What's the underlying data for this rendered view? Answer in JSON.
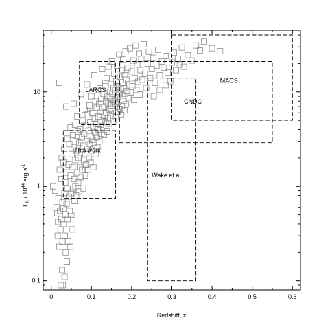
{
  "chart_data": {
    "type": "scatter",
    "xlabel": "Redshift, z",
    "ylabel_main": "L",
    "ylabel_sub": "X",
    "ylabel_mid": " / 10",
    "ylabel_exp": "44",
    "ylabel_unit": " erg s",
    "ylabel_unit_exp": "-1",
    "xlim": [
      -0.02,
      0.62
    ],
    "ylim": [
      0.08,
      45
    ],
    "yscale": "log",
    "grid": false,
    "x_ticks": [
      {
        "value": 0,
        "label": "0"
      },
      {
        "value": 0.1,
        "label": "0.1"
      },
      {
        "value": 0.2,
        "label": "0.2"
      },
      {
        "value": 0.3,
        "label": "0.3"
      },
      {
        "value": 0.4,
        "label": "0.4"
      },
      {
        "value": 0.5,
        "label": "0.5"
      },
      {
        "value": 0.6,
        "label": "0.6"
      }
    ],
    "y_ticks": [
      {
        "value": 0.1,
        "label": "0.1"
      },
      {
        "value": 1,
        "label": "1"
      },
      {
        "value": 10,
        "label": "10"
      }
    ],
    "colors": {
      "marker": "#8c8c8c",
      "axis": "#000000",
      "box": "#000000"
    },
    "regions": [
      {
        "name": "LARCS",
        "label_x": 0.085,
        "label_y": 10.0,
        "x": [
          0.07,
          0.16
        ],
        "y": [
          4.5,
          21
        ]
      },
      {
        "name": "This work",
        "label_x": 0.057,
        "label_y": 2.3,
        "x": [
          0.03,
          0.16
        ],
        "y": [
          0.75,
          3.9
        ]
      },
      {
        "name": "Wake et al.",
        "label_x": 0.25,
        "label_y": 1.25,
        "x": [
          0.24,
          0.36
        ],
        "y": [
          0.1,
          14
        ]
      },
      {
        "name": "CNDC",
        "label_x": 0.33,
        "label_y": 7.5,
        "x": [
          0.17,
          0.55
        ],
        "y": [
          2.9,
          21
        ]
      },
      {
        "name": "MACS",
        "label_x": 0.42,
        "label_y": 12.5,
        "x": [
          0.3,
          0.6
        ],
        "y": [
          5.0,
          40
        ]
      }
    ],
    "points": [
      [
        0.005,
        1.0
      ],
      [
        0.01,
        0.9
      ],
      [
        0.013,
        0.6
      ],
      [
        0.015,
        0.52
      ],
      [
        0.016,
        0.3
      ],
      [
        0.017,
        0.42
      ],
      [
        0.018,
        0.75
      ],
      [
        0.02,
        12.5
      ],
      [
        0.02,
        0.23
      ],
      [
        0.021,
        1.5
      ],
      [
        0.022,
        0.55
      ],
      [
        0.023,
        0.35
      ],
      [
        0.024,
        0.09
      ],
      [
        0.025,
        1.2
      ],
      [
        0.025,
        0.45
      ],
      [
        0.026,
        2.0
      ],
      [
        0.027,
        0.13
      ],
      [
        0.028,
        0.68
      ],
      [
        0.028,
        0.26
      ],
      [
        0.029,
        0.09
      ],
      [
        0.03,
        1.8
      ],
      [
        0.03,
        0.58
      ],
      [
        0.031,
        0.4
      ],
      [
        0.032,
        2.5
      ],
      [
        0.033,
        0.11
      ],
      [
        0.033,
        0.85
      ],
      [
        0.034,
        0.3
      ],
      [
        0.035,
        1.1
      ],
      [
        0.035,
        0.5
      ],
      [
        0.036,
        0.2
      ],
      [
        0.037,
        7.0
      ],
      [
        0.037,
        1.4
      ],
      [
        0.038,
        0.65
      ],
      [
        0.039,
        0.16
      ],
      [
        0.04,
        3.2
      ],
      [
        0.04,
        0.95
      ],
      [
        0.041,
        0.45
      ],
      [
        0.042,
        0.26
      ],
      [
        0.043,
        1.7
      ],
      [
        0.044,
        0.78
      ],
      [
        0.045,
        2.8
      ],
      [
        0.046,
        0.55
      ],
      [
        0.047,
        0.23
      ],
      [
        0.048,
        4.2
      ],
      [
        0.048,
        1.3
      ],
      [
        0.05,
        0.85
      ],
      [
        0.05,
        0.5
      ],
      [
        0.051,
        2.2
      ],
      [
        0.052,
        0.35
      ],
      [
        0.053,
        1.6
      ],
      [
        0.054,
        3.5
      ],
      [
        0.055,
        0.95
      ],
      [
        0.056,
        7.5
      ],
      [
        0.056,
        2.6
      ],
      [
        0.057,
        1.2
      ],
      [
        0.058,
        0.7
      ],
      [
        0.059,
        4.5
      ],
      [
        0.06,
        1.9
      ],
      [
        0.06,
        1.0
      ],
      [
        0.061,
        3.0
      ],
      [
        0.062,
        0.8
      ],
      [
        0.063,
        2.4
      ],
      [
        0.064,
        1.4
      ],
      [
        0.065,
        5.5
      ],
      [
        0.066,
        3.8
      ],
      [
        0.067,
        1.1
      ],
      [
        0.068,
        2.0
      ],
      [
        0.069,
        0.88
      ],
      [
        0.07,
        2.9
      ],
      [
        0.071,
        1.6
      ],
      [
        0.072,
        4.0
      ],
      [
        0.073,
        1.25
      ],
      [
        0.074,
        9.5
      ],
      [
        0.075,
        2.3
      ],
      [
        0.076,
        3.3
      ],
      [
        0.077,
        1.5
      ],
      [
        0.078,
        5.0
      ],
      [
        0.079,
        0.95
      ],
      [
        0.08,
        2.7
      ],
      [
        0.081,
        1.9
      ],
      [
        0.082,
        3.6
      ],
      [
        0.083,
        6.5
      ],
      [
        0.084,
        1.3
      ],
      [
        0.085,
        2.2
      ],
      [
        0.086,
        4.4
      ],
      [
        0.087,
        1.7
      ],
      [
        0.088,
        3.0
      ],
      [
        0.089,
        12.0
      ],
      [
        0.09,
        2.5
      ],
      [
        0.091,
        5.8
      ],
      [
        0.092,
        1.5
      ],
      [
        0.093,
        3.9
      ],
      [
        0.094,
        2.0
      ],
      [
        0.095,
        7.2
      ],
      [
        0.096,
        2.8
      ],
      [
        0.097,
        4.8
      ],
      [
        0.098,
        1.8
      ],
      [
        0.099,
        3.4
      ],
      [
        0.1,
        9.0
      ],
      [
        0.101,
        2.4
      ],
      [
        0.102,
        6.0
      ],
      [
        0.103,
        3.1
      ],
      [
        0.104,
        4.3
      ],
      [
        0.105,
        1.6
      ],
      [
        0.106,
        2.9
      ],
      [
        0.107,
        15.0
      ],
      [
        0.108,
        5.2
      ],
      [
        0.109,
        3.7
      ],
      [
        0.11,
        8.0
      ],
      [
        0.111,
        2.2
      ],
      [
        0.112,
        4.6
      ],
      [
        0.113,
        6.8
      ],
      [
        0.114,
        3.3
      ],
      [
        0.115,
        2.6
      ],
      [
        0.116,
        10.5
      ],
      [
        0.117,
        5.5
      ],
      [
        0.118,
        4.0
      ],
      [
        0.119,
        7.5
      ],
      [
        0.12,
        3.0
      ],
      [
        0.121,
        12.5
      ],
      [
        0.122,
        6.2
      ],
      [
        0.123,
        4.5
      ],
      [
        0.124,
        3.6
      ],
      [
        0.125,
        8.5
      ],
      [
        0.126,
        5.0
      ],
      [
        0.127,
        17.5
      ],
      [
        0.128,
        6.8
      ],
      [
        0.129,
        4.2
      ],
      [
        0.13,
        9.5
      ],
      [
        0.131,
        3.5
      ],
      [
        0.132,
        7.0
      ],
      [
        0.133,
        5.6
      ],
      [
        0.134,
        11.5
      ],
      [
        0.135,
        4.8
      ],
      [
        0.136,
        8.0
      ],
      [
        0.137,
        6.0
      ],
      [
        0.138,
        14.0
      ],
      [
        0.139,
        3.8
      ],
      [
        0.14,
        9.0
      ],
      [
        0.141,
        5.3
      ],
      [
        0.142,
        7.6
      ],
      [
        0.143,
        18.5
      ],
      [
        0.144,
        4.6
      ],
      [
        0.145,
        6.5
      ],
      [
        0.146,
        10.0
      ],
      [
        0.147,
        8.5
      ],
      [
        0.148,
        5.8
      ],
      [
        0.149,
        12.0
      ],
      [
        0.15,
        7.2
      ],
      [
        0.151,
        21.0
      ],
      [
        0.152,
        9.5
      ],
      [
        0.153,
        6.3
      ],
      [
        0.154,
        4.9
      ],
      [
        0.155,
        11.0
      ],
      [
        0.156,
        8.0
      ],
      [
        0.157,
        15.5
      ],
      [
        0.158,
        6.8
      ],
      [
        0.159,
        10.5
      ],
      [
        0.16,
        7.5
      ],
      [
        0.161,
        5.4
      ],
      [
        0.162,
        13.0
      ],
      [
        0.163,
        8.8
      ],
      [
        0.164,
        19.0
      ],
      [
        0.165,
        6.1
      ],
      [
        0.166,
        11.5
      ],
      [
        0.167,
        7.8
      ],
      [
        0.168,
        9.8
      ],
      [
        0.169,
        25.0
      ],
      [
        0.17,
        6.6
      ],
      [
        0.171,
        14.5
      ],
      [
        0.172,
        8.3
      ],
      [
        0.173,
        10.8
      ],
      [
        0.174,
        5.7
      ],
      [
        0.175,
        17.0
      ],
      [
        0.176,
        7.1
      ],
      [
        0.177,
        12.5
      ],
      [
        0.178,
        9.2
      ],
      [
        0.179,
        22.0
      ],
      [
        0.18,
        8.0
      ],
      [
        0.181,
        11.0
      ],
      [
        0.182,
        6.4
      ],
      [
        0.183,
        15.0
      ],
      [
        0.184,
        9.6
      ],
      [
        0.185,
        27.0
      ],
      [
        0.186,
        7.4
      ],
      [
        0.187,
        13.5
      ],
      [
        0.188,
        10.2
      ],
      [
        0.19,
        18.0
      ],
      [
        0.192,
        8.7
      ],
      [
        0.194,
        12.0
      ],
      [
        0.196,
        29.0
      ],
      [
        0.198,
        9.9
      ],
      [
        0.2,
        16.5
      ],
      [
        0.202,
        11.5
      ],
      [
        0.204,
        21.5
      ],
      [
        0.206,
        8.2
      ],
      [
        0.208,
        14.0
      ],
      [
        0.21,
        31.0
      ],
      [
        0.212,
        10.5
      ],
      [
        0.214,
        19.5
      ],
      [
        0.216,
        12.8
      ],
      [
        0.218,
        25.5
      ],
      [
        0.22,
        9.4
      ],
      [
        0.222,
        17.0
      ],
      [
        0.224,
        22.5
      ],
      [
        0.226,
        13.5
      ],
      [
        0.23,
        32.0
      ],
      [
        0.233,
        15.5
      ],
      [
        0.236,
        11.0
      ],
      [
        0.24,
        20.0
      ],
      [
        0.243,
        26.5
      ],
      [
        0.246,
        14.0
      ],
      [
        0.25,
        17.5
      ],
      [
        0.254,
        23.0
      ],
      [
        0.258,
        12.5
      ],
      [
        0.262,
        19.0
      ],
      [
        0.266,
        28.0
      ],
      [
        0.27,
        15.0
      ],
      [
        0.275,
        21.0
      ],
      [
        0.28,
        18.0
      ],
      [
        0.285,
        24.0
      ],
      [
        0.29,
        16.0
      ],
      [
        0.296,
        13.0
      ],
      [
        0.3,
        20.5
      ],
      [
        0.305,
        26.0
      ],
      [
        0.31,
        17.0
      ],
      [
        0.315,
        22.5
      ],
      [
        0.32,
        19.5
      ],
      [
        0.325,
        29.5
      ],
      [
        0.33,
        18.5
      ],
      [
        0.34,
        24.5
      ],
      [
        0.35,
        21.5
      ],
      [
        0.36,
        31.0
      ],
      [
        0.37,
        27.5
      ],
      [
        0.38,
        34.0
      ],
      [
        0.4,
        29.0
      ],
      [
        0.42,
        27.0
      ],
      [
        0.27,
        10.5
      ],
      [
        0.255,
        9.0
      ],
      [
        0.285,
        11.8
      ]
    ]
  }
}
